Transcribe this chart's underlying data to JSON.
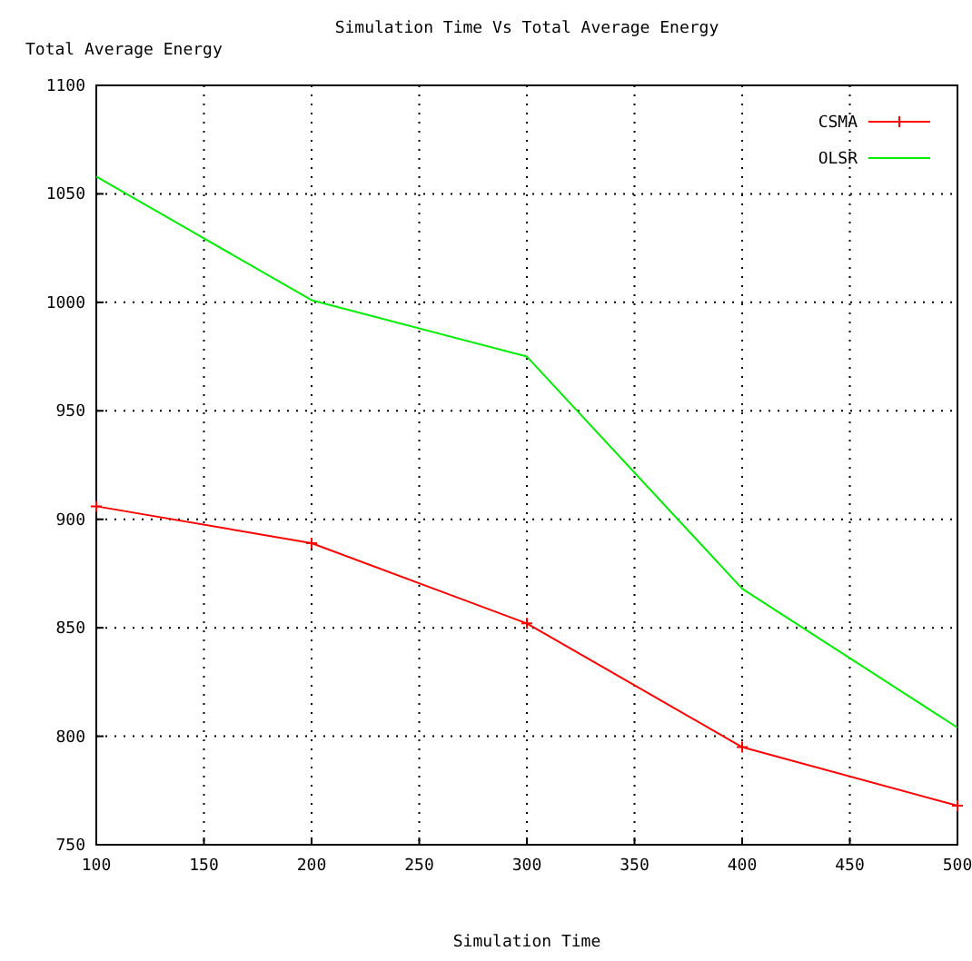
{
  "chart_data": {
    "type": "line",
    "title": "Simulation Time Vs Total Average Energy",
    "xlabel": "Simulation Time",
    "ylabel": "Total Average Energy",
    "x": [
      100,
      200,
      300,
      400,
      500
    ],
    "series": [
      {
        "name": "CSMA",
        "color": "#ff0000",
        "marker": "cross",
        "values": [
          906,
          889,
          852,
          795,
          768
        ]
      },
      {
        "name": "OLSR",
        "color": "#00ee00",
        "marker": "none",
        "values": [
          1058,
          1001,
          975,
          868,
          804
        ]
      }
    ],
    "xlim": [
      100,
      500
    ],
    "xticks": [
      100,
      150,
      200,
      250,
      300,
      350,
      400,
      450,
      500
    ],
    "ylim": [
      750,
      1100
    ],
    "yticks": [
      750,
      800,
      850,
      900,
      950,
      1000,
      1050,
      1100
    ],
    "grid": true,
    "legend": "top right",
    "line_style": "solid"
  }
}
